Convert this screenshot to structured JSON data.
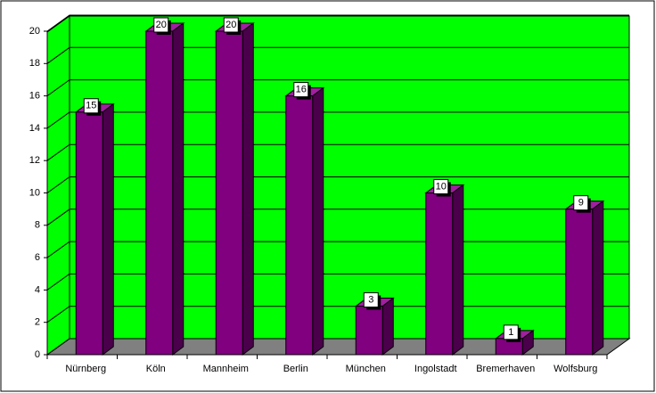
{
  "chart_data": {
    "type": "bar",
    "categories": [
      "Nürnberg",
      "Köln",
      "Mannheim",
      "Berlin",
      "München",
      "Ingolstadt",
      "Bremerhaven",
      "Wolfsburg"
    ],
    "values": [
      15,
      20,
      20,
      16,
      3,
      10,
      1,
      9
    ],
    "color": "#800080",
    "wall_color": "#00ff00",
    "floor_color": "#808080",
    "ylim": [
      0,
      20
    ],
    "yticks": [
      0,
      2,
      4,
      6,
      8,
      10,
      12,
      14,
      16,
      18,
      20
    ],
    "grid": true
  }
}
